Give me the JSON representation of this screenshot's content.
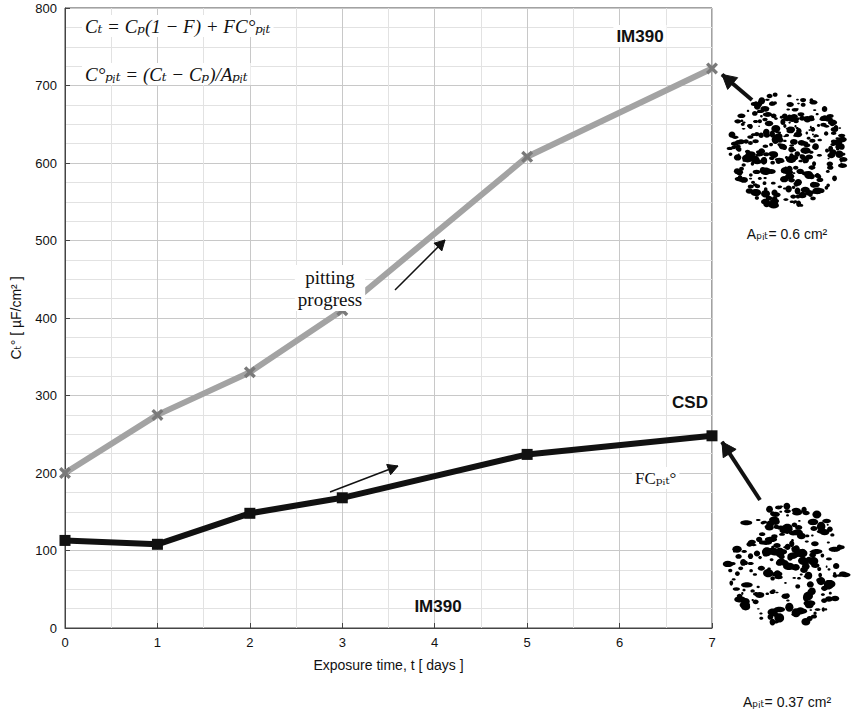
{
  "chart_data": {
    "type": "line",
    "x": [
      0,
      1,
      2,
      3,
      5,
      7
    ],
    "series": [
      {
        "name": "IM390",
        "color": "#a3a3a3",
        "marker": "x",
        "line_style": "solid",
        "values": [
          200,
          275,
          330,
          410,
          608,
          722
        ]
      },
      {
        "name": "CSD",
        "color": "#111111",
        "marker": "square",
        "line_style": "solid",
        "values": [
          113,
          108,
          148,
          168,
          224,
          248
        ]
      }
    ],
    "xlabel": "Exposure time, t [ days ]",
    "ylabel": "Cₜ° [ µF/cm² ]",
    "xlim": [
      0,
      7
    ],
    "xticks": [
      0,
      1,
      2,
      3,
      4,
      5,
      6,
      7
    ],
    "ylim": [
      0,
      800
    ],
    "yticks": [
      0,
      100,
      200,
      300,
      400,
      500,
      600,
      700,
      800
    ],
    "grid": true,
    "annotations": [
      "Cₜ = Cₚ(1 − F) + FC°ₚᵢₜ",
      "C°ₚᵢₜ = (Cₜ − Cₚ)/Aₚᵢₜ",
      "pitting progress",
      "FCₚᵢₜ°",
      "IM390",
      "Aₚᵢₜ= 0.6 cm²",
      "Aₚᵢₜ= 0.37 cm²"
    ]
  }
}
